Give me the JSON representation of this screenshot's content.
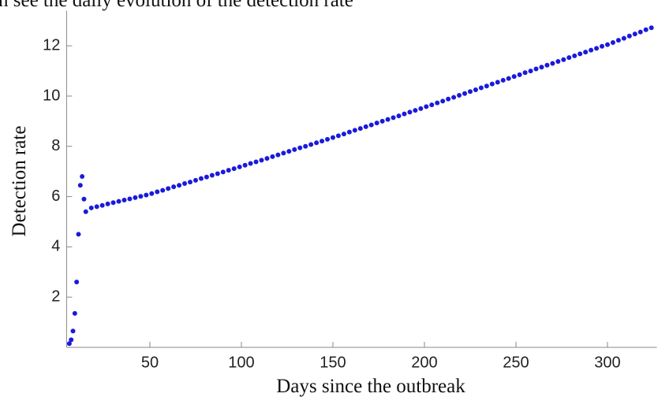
{
  "chart_data": {
    "type": "scatter",
    "title": "n see the daily evolution of the detection rate",
    "x_label": "Days since the outbreak",
    "y_label": "Detection rate",
    "color": "#1a1adb",
    "xlim": [
      4.5,
      327
    ],
    "ylim": [
      0,
      13.4
    ],
    "xticks": [
      50,
      100,
      150,
      200,
      250,
      300
    ],
    "yticks": [
      2,
      4,
      6,
      8,
      10,
      12
    ],
    "x": [
      6,
      7,
      8,
      9,
      10,
      11,
      12,
      13,
      14,
      15,
      18,
      21,
      24,
      27,
      30,
      33,
      36,
      39,
      42,
      45,
      48,
      51,
      54,
      57,
      60,
      63,
      66,
      69,
      72,
      75,
      78,
      81,
      84,
      87,
      90,
      93,
      96,
      99,
      102,
      105,
      108,
      111,
      114,
      117,
      120,
      123,
      126,
      129,
      132,
      135,
      138,
      141,
      144,
      147,
      150,
      153,
      156,
      159,
      162,
      165,
      168,
      171,
      174,
      177,
      180,
      183,
      186,
      189,
      192,
      195,
      198,
      201,
      204,
      207,
      210,
      213,
      216,
      219,
      222,
      225,
      228,
      231,
      234,
      237,
      240,
      243,
      246,
      249,
      252,
      255,
      258,
      261,
      264,
      267,
      270,
      273,
      276,
      279,
      282,
      285,
      288,
      291,
      294,
      297,
      300,
      303,
      306,
      309,
      312,
      315,
      318,
      321,
      324
    ],
    "values": [
      0.15,
      0.3,
      0.65,
      1.35,
      2.6,
      4.5,
      6.45,
      6.8,
      5.9,
      5.4,
      5.55,
      5.6,
      5.65,
      5.71,
      5.76,
      5.81,
      5.86,
      5.91,
      5.96,
      6.01,
      6.06,
      6.12,
      6.19,
      6.25,
      6.32,
      6.39,
      6.45,
      6.52,
      6.58,
      6.65,
      6.72,
      6.78,
      6.85,
      6.91,
      6.98,
      7.05,
      7.11,
      7.18,
      7.25,
      7.32,
      7.38,
      7.45,
      7.52,
      7.59,
      7.66,
      7.73,
      7.8,
      7.87,
      7.94,
      8.0,
      8.07,
      8.14,
      8.21,
      8.28,
      8.35,
      8.42,
      8.49,
      8.57,
      8.64,
      8.71,
      8.78,
      8.85,
      8.93,
      9.0,
      9.07,
      9.14,
      9.21,
      9.29,
      9.36,
      9.43,
      9.5,
      9.58,
      9.65,
      9.73,
      9.8,
      9.88,
      9.95,
      10.03,
      10.1,
      10.18,
      10.25,
      10.33,
      10.4,
      10.48,
      10.55,
      10.63,
      10.7,
      10.78,
      10.85,
      10.93,
      11.0,
      11.08,
      11.15,
      11.23,
      11.3,
      11.38,
      11.45,
      11.53,
      11.6,
      11.68,
      11.75,
      11.83,
      11.9,
      11.98,
      12.05,
      12.13,
      12.22,
      12.3,
      12.39,
      12.47,
      12.55,
      12.64,
      12.72
    ]
  }
}
